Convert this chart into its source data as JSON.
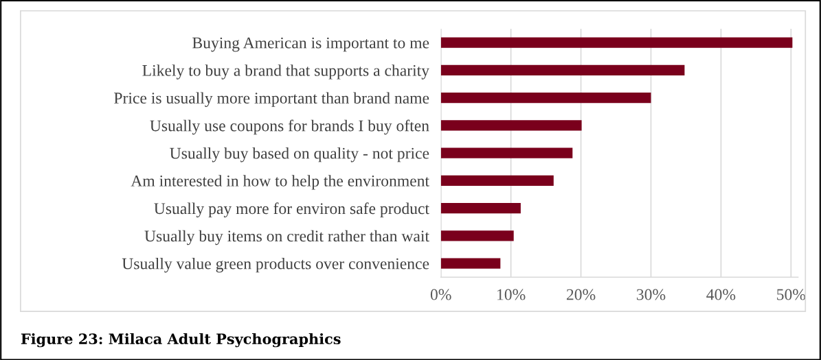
{
  "chart_data": {
    "type": "bar",
    "orientation": "horizontal",
    "categories": [
      "Buying American is important to me",
      "Likely to buy a brand that supports a charity",
      "Price is usually more important than brand name",
      "Usually use coupons for brands I buy often",
      "Usually buy based on quality - not price",
      "Am interested in how to help the environment",
      "Usually pay more for environ safe product",
      "Usually buy items on credit rather than wait",
      "Usually value green products over convenience"
    ],
    "values": [
      50.2,
      34.8,
      30.0,
      20.1,
      18.8,
      16.1,
      11.4,
      10.4,
      8.5
    ],
    "color": "#7a001c",
    "xlim": [
      0,
      51
    ],
    "xticks": [
      {
        "value": 0,
        "label": "0%"
      },
      {
        "value": 10,
        "label": "10%"
      },
      {
        "value": 20,
        "label": "20%"
      },
      {
        "value": 30,
        "label": "30%"
      },
      {
        "value": 40,
        "label": "40%"
      },
      {
        "value": 50,
        "label": "50%"
      }
    ],
    "grid": "x",
    "annotations": [
      "Figure 23: Milaca Adult Psychographics"
    ]
  }
}
